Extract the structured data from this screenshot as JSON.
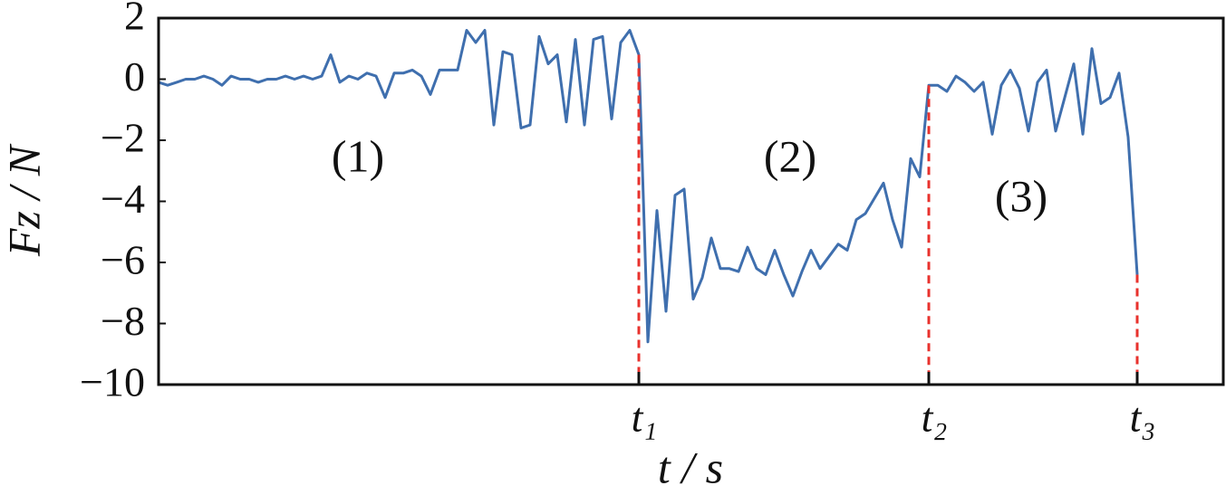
{
  "chart_data": {
    "type": "line",
    "xlabel": "t / s",
    "ylabel": "Fz / N",
    "color": "#3f6fae",
    "marker_color": "#e8322d",
    "x": [
      0,
      1,
      2,
      3,
      4,
      5,
      6,
      7,
      8,
      9,
      10,
      11,
      12,
      13,
      14,
      15,
      16,
      17,
      18,
      19,
      20,
      21,
      22,
      23,
      24,
      25,
      26,
      27,
      28,
      29,
      30,
      31,
      32,
      33,
      34,
      35,
      36,
      37,
      38,
      39,
      40,
      41,
      42,
      43,
      44,
      45,
      46,
      47,
      48,
      49,
      50,
      51,
      52,
      53,
      54,
      55,
      56,
      57,
      58,
      59,
      60,
      61,
      62,
      63,
      64,
      65,
      66,
      67,
      68,
      69,
      70,
      71,
      72,
      73,
      74,
      75,
      76,
      77,
      78,
      79,
      80,
      81,
      82,
      83,
      84,
      85,
      86,
      87,
      88,
      89,
      90,
      91,
      92,
      93,
      94,
      95,
      96,
      97,
      98,
      99,
      100,
      101,
      102,
      103,
      104,
      105,
      106,
      107,
      108
    ],
    "values": [
      -0.1,
      -0.2,
      -0.1,
      0,
      0,
      0.1,
      0,
      -0.2,
      0.1,
      0,
      0,
      -0.1,
      0,
      0,
      0.1,
      0,
      0.1,
      0,
      0.1,
      0.8,
      -0.1,
      0.1,
      0,
      0.2,
      0.1,
      -0.6,
      0.2,
      0.2,
      0.3,
      0.1,
      -0.5,
      0.3,
      0.3,
      0.3,
      1.6,
      1.2,
      1.6,
      -1.5,
      0.9,
      0.8,
      -1.6,
      -1.5,
      1.4,
      0.5,
      0.8,
      -1.4,
      1.3,
      -1.5,
      1.3,
      1.4,
      -1.3,
      1.2,
      1.6,
      0.8,
      -8.6,
      -4.3,
      -7.6,
      -3.8,
      -3.6,
      -7.2,
      -6.5,
      -5.2,
      -6.2,
      -6.2,
      -6.3,
      -5.5,
      -6.2,
      -6.4,
      -5.6,
      -6.4,
      -7.1,
      -6.3,
      -5.6,
      -6.2,
      -5.8,
      -5.4,
      -5.6,
      -4.6,
      -4.4,
      -3.9,
      -3.4,
      -4.6,
      -5.5,
      -2.6,
      -3.2,
      -0.2,
      -0.2,
      -0.4,
      0.1,
      -0.1,
      -0.4,
      -0.1,
      -1.8,
      -0.2,
      0.3,
      -0.3,
      -1.7,
      -0.1,
      0.3,
      -1.7,
      -0.6,
      0.5,
      -1.8,
      1.0,
      -0.8,
      -0.6,
      0.2,
      -1.9,
      -6.4
    ],
    "xlim": [
      0,
      117.5
    ],
    "xticks": [
      {
        "value": 53,
        "label": "t₁"
      },
      {
        "value": 85,
        "label": "t₂"
      },
      {
        "value": 108,
        "label": "t₃"
      }
    ],
    "ylim": [
      -10,
      2
    ],
    "yticks": [
      {
        "value": -10,
        "label": "−10"
      },
      {
        "value": -8,
        "label": "−8"
      },
      {
        "value": -6,
        "label": "−6"
      },
      {
        "value": -4,
        "label": "−4"
      },
      {
        "value": -2,
        "label": "−2"
      },
      0,
      2
    ],
    "annotations": [
      "(1)",
      "(2)",
      "(3)"
    ]
  }
}
